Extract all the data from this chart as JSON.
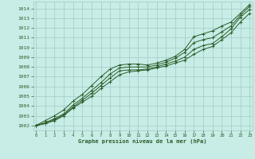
{
  "xlabel": "Graphe pression niveau de la mer (hPa)",
  "background_color": "#c8ece6",
  "grid_color": "#a0ccc6",
  "line_color": "#2a5e2a",
  "ylim": [
    1001.5,
    1014.7
  ],
  "xlim": [
    -0.3,
    23.3
  ],
  "yticks": [
    1002,
    1003,
    1004,
    1005,
    1006,
    1007,
    1008,
    1009,
    1010,
    1011,
    1012,
    1013,
    1014
  ],
  "xticks": [
    0,
    1,
    2,
    3,
    4,
    5,
    6,
    7,
    8,
    9,
    10,
    11,
    12,
    13,
    14,
    15,
    16,
    17,
    18,
    19,
    20,
    21,
    22,
    23
  ],
  "series": [
    [
      1002.0,
      1002.2,
      1002.5,
      1003.0,
      1003.8,
      1004.4,
      1005.0,
      1005.8,
      1006.5,
      1007.2,
      1007.5,
      1007.6,
      1007.7,
      1007.9,
      1008.1,
      1008.4,
      1008.7,
      1009.3,
      1009.8,
      1010.1,
      1010.8,
      1011.5,
      1012.6,
      1013.5
    ],
    [
      1002.0,
      1002.2,
      1002.6,
      1003.1,
      1003.9,
      1004.6,
      1005.3,
      1006.1,
      1006.9,
      1007.6,
      1007.7,
      1007.7,
      1007.8,
      1008.0,
      1008.3,
      1008.6,
      1009.0,
      1009.8,
      1010.2,
      1010.4,
      1011.1,
      1011.9,
      1013.1,
      1013.9
    ],
    [
      1002.0,
      1002.3,
      1002.7,
      1003.2,
      1004.1,
      1004.8,
      1005.6,
      1006.4,
      1007.3,
      1007.9,
      1008.0,
      1008.0,
      1008.0,
      1008.2,
      1008.5,
      1008.9,
      1009.5,
      1010.5,
      1010.8,
      1011.0,
      1011.6,
      1012.2,
      1013.3,
      1014.2
    ],
    [
      1002.0,
      1002.5,
      1003.0,
      1003.6,
      1004.5,
      1005.2,
      1006.1,
      1007.0,
      1007.8,
      1008.2,
      1008.3,
      1008.3,
      1008.2,
      1008.4,
      1008.7,
      1009.1,
      1009.8,
      1011.1,
      1011.4,
      1011.7,
      1012.2,
      1012.6,
      1013.5,
      1014.4
    ]
  ]
}
